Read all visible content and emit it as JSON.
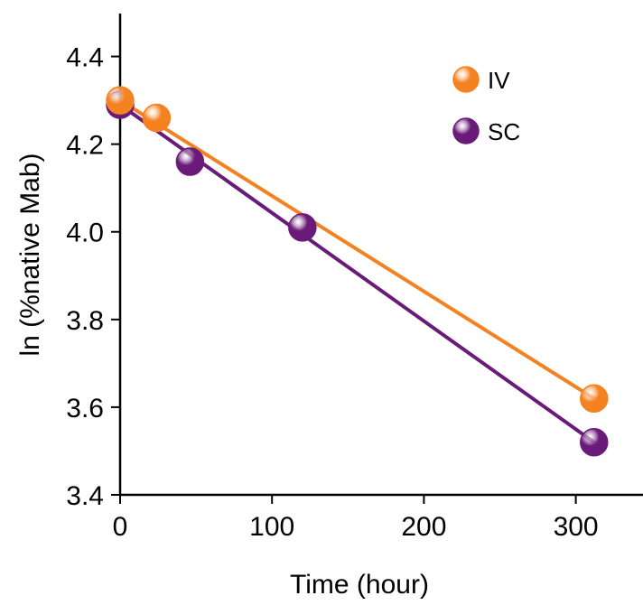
{
  "chart_data": {
    "type": "scatter",
    "title": "",
    "xlabel": "Time (hour)",
    "ylabel": "ln (%native Mab)",
    "xlim": [
      0,
      350
    ],
    "ylim": [
      3.4,
      4.5
    ],
    "xticks": [
      0,
      100,
      200,
      300
    ],
    "xtick_labels": [
      "0",
      "100",
      "200",
      "300"
    ],
    "yticks": [
      3.4,
      3.6,
      3.8,
      4.0,
      4.2,
      4.4
    ],
    "ytick_labels": [
      "3.4",
      "3.6",
      "3.8",
      "4.0",
      "4.2",
      "4.4"
    ],
    "grid": false,
    "legend_position": "top-right",
    "series": [
      {
        "name": "IV",
        "color": "#f58220",
        "points": [
          {
            "x": 0,
            "y": 4.3
          },
          {
            "x": 24,
            "y": 4.26
          },
          {
            "x": 312,
            "y": 3.62
          }
        ],
        "fit_line": {
          "x": [
            0,
            312
          ],
          "y": [
            4.3,
            3.62
          ]
        }
      },
      {
        "name": "SC",
        "color": "#6a1a78",
        "points": [
          {
            "x": 0,
            "y": 4.29
          },
          {
            "x": 46,
            "y": 4.16
          },
          {
            "x": 120,
            "y": 4.01
          },
          {
            "x": 312,
            "y": 3.52
          }
        ],
        "fit_line": {
          "x": [
            0,
            312
          ],
          "y": [
            4.29,
            3.52
          ]
        }
      }
    ]
  }
}
